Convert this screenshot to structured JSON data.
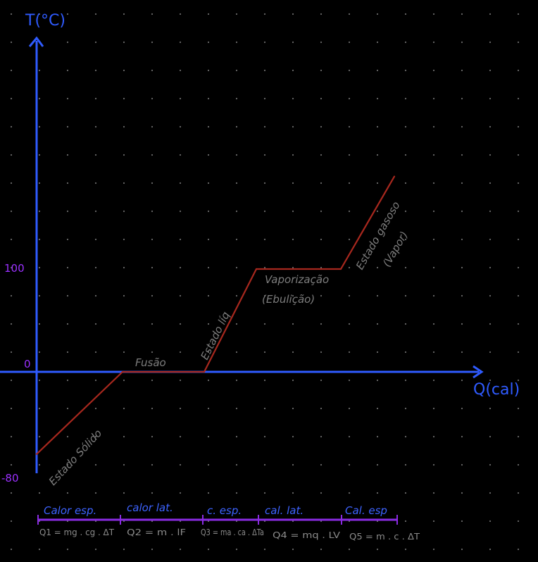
{
  "chart_data": {
    "type": "line",
    "xlabel": "Q(cal)",
    "ylabel": "T(°C)",
    "y_ticks": [
      {
        "value": 100,
        "label": "100"
      },
      {
        "value": 0,
        "label": "0"
      },
      {
        "value": -80,
        "label": "-80"
      }
    ],
    "ylim": [
      -80,
      100
    ],
    "series": [
      {
        "points": [
          {
            "x": 0,
            "y": -80
          },
          {
            "x": 1,
            "y": 0
          },
          {
            "x": 2,
            "y": 0
          },
          {
            "x": 3,
            "y": 100
          },
          {
            "x": 4,
            "y": 100
          },
          {
            "x": 5,
            "y": 190
          }
        ]
      }
    ],
    "annotations": [
      {
        "text": "Estado Sólido"
      },
      {
        "text": "Fusão"
      },
      {
        "text": "Estado líq"
      },
      {
        "text": "Vaporização"
      },
      {
        "text": "(Ebulição)"
      },
      {
        "text": "Estado gasoso"
      },
      {
        "text": "(Vapor)"
      }
    ],
    "segments": [
      {
        "label": "Calor esp.",
        "formula": "Q1 = mg . cg . ΔT"
      },
      {
        "label": "calor lat.",
        "formula": "Q2 = m . lF"
      },
      {
        "label": "c. esp.",
        "formula": "Q3 = ma . ca . ΔTa"
      },
      {
        "label": "cal. lat.",
        "formula": "Q4 = mq . LV"
      },
      {
        "label": "Cal. esp",
        "formula": "Q5 = m . c . ΔT"
      }
    ],
    "grid": true,
    "colors": {
      "background": "#000000",
      "grid_dots": "#6b6b6b",
      "axes": "#2f5bff",
      "curve": "#a8281e",
      "ticks": "#9b30ff",
      "segment_bar": "#8a2be2",
      "phase_text": "#7d7d7d",
      "formula_text": "#8a8a8a"
    }
  }
}
